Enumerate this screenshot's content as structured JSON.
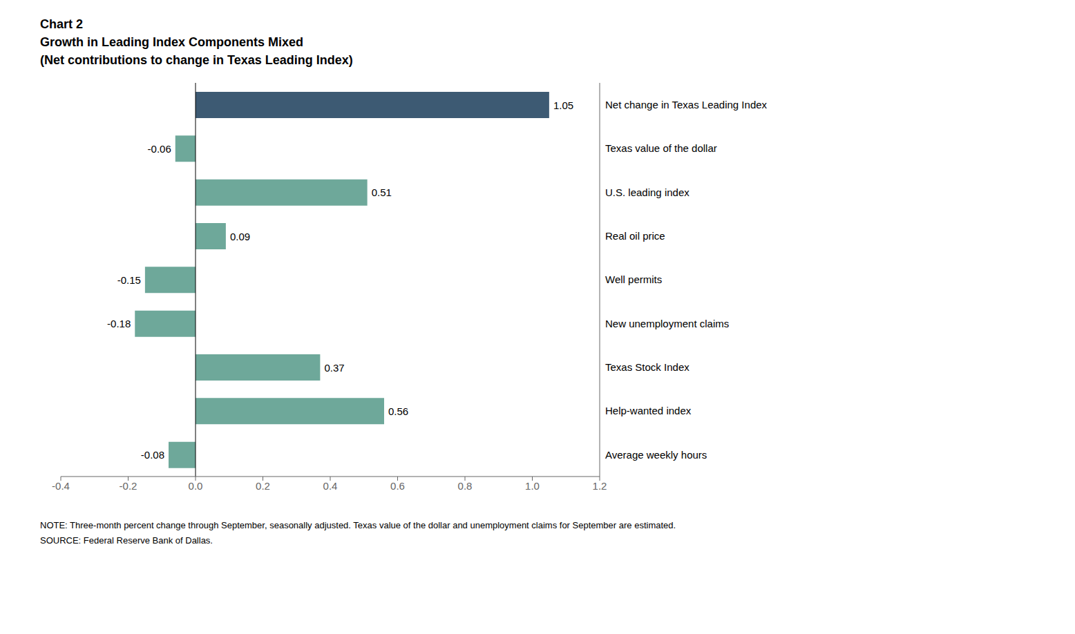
{
  "chart_data": {
    "type": "bar",
    "orientation": "horizontal",
    "title": "Chart 2",
    "subtitle": [
      "Growth in Leading Index Components Mixed",
      "(Net contributions to change in Texas Leading Index)"
    ],
    "categories": [
      "Net change in Texas Leading Index",
      "Texas value of the dollar",
      "U.S. leading index",
      "Real oil price",
      "Well permits",
      "New unemployment claims",
      "Texas Stock Index",
      "Help-wanted index",
      "Average weekly hours"
    ],
    "values": [
      1.05,
      -0.06,
      0.51,
      0.09,
      -0.15,
      -0.18,
      0.37,
      0.56,
      -0.08
    ],
    "colors": [
      "#3D5A73",
      "#6EA89A",
      "#6EA89A",
      "#6EA89A",
      "#6EA89A",
      "#6EA89A",
      "#6EA89A",
      "#6EA89A",
      "#6EA89A"
    ],
    "xlim": [
      -0.4,
      1.2
    ],
    "xticks": [
      -0.4,
      -0.2,
      {
        "value": 0.0,
        "label": "0.0"
      },
      0.2,
      0.4,
      0.6,
      0.8,
      {
        "value": 1.0,
        "label": "1.0"
      },
      1.2
    ],
    "data_labels": true,
    "grid": false,
    "annotations": [
      "NOTE: Three-month percent change through September, seasonally adjusted. Texas value of the dollar and unemployment claims for September are estimated.",
      "SOURCE: Federal Reserve Bank of Dallas."
    ]
  }
}
